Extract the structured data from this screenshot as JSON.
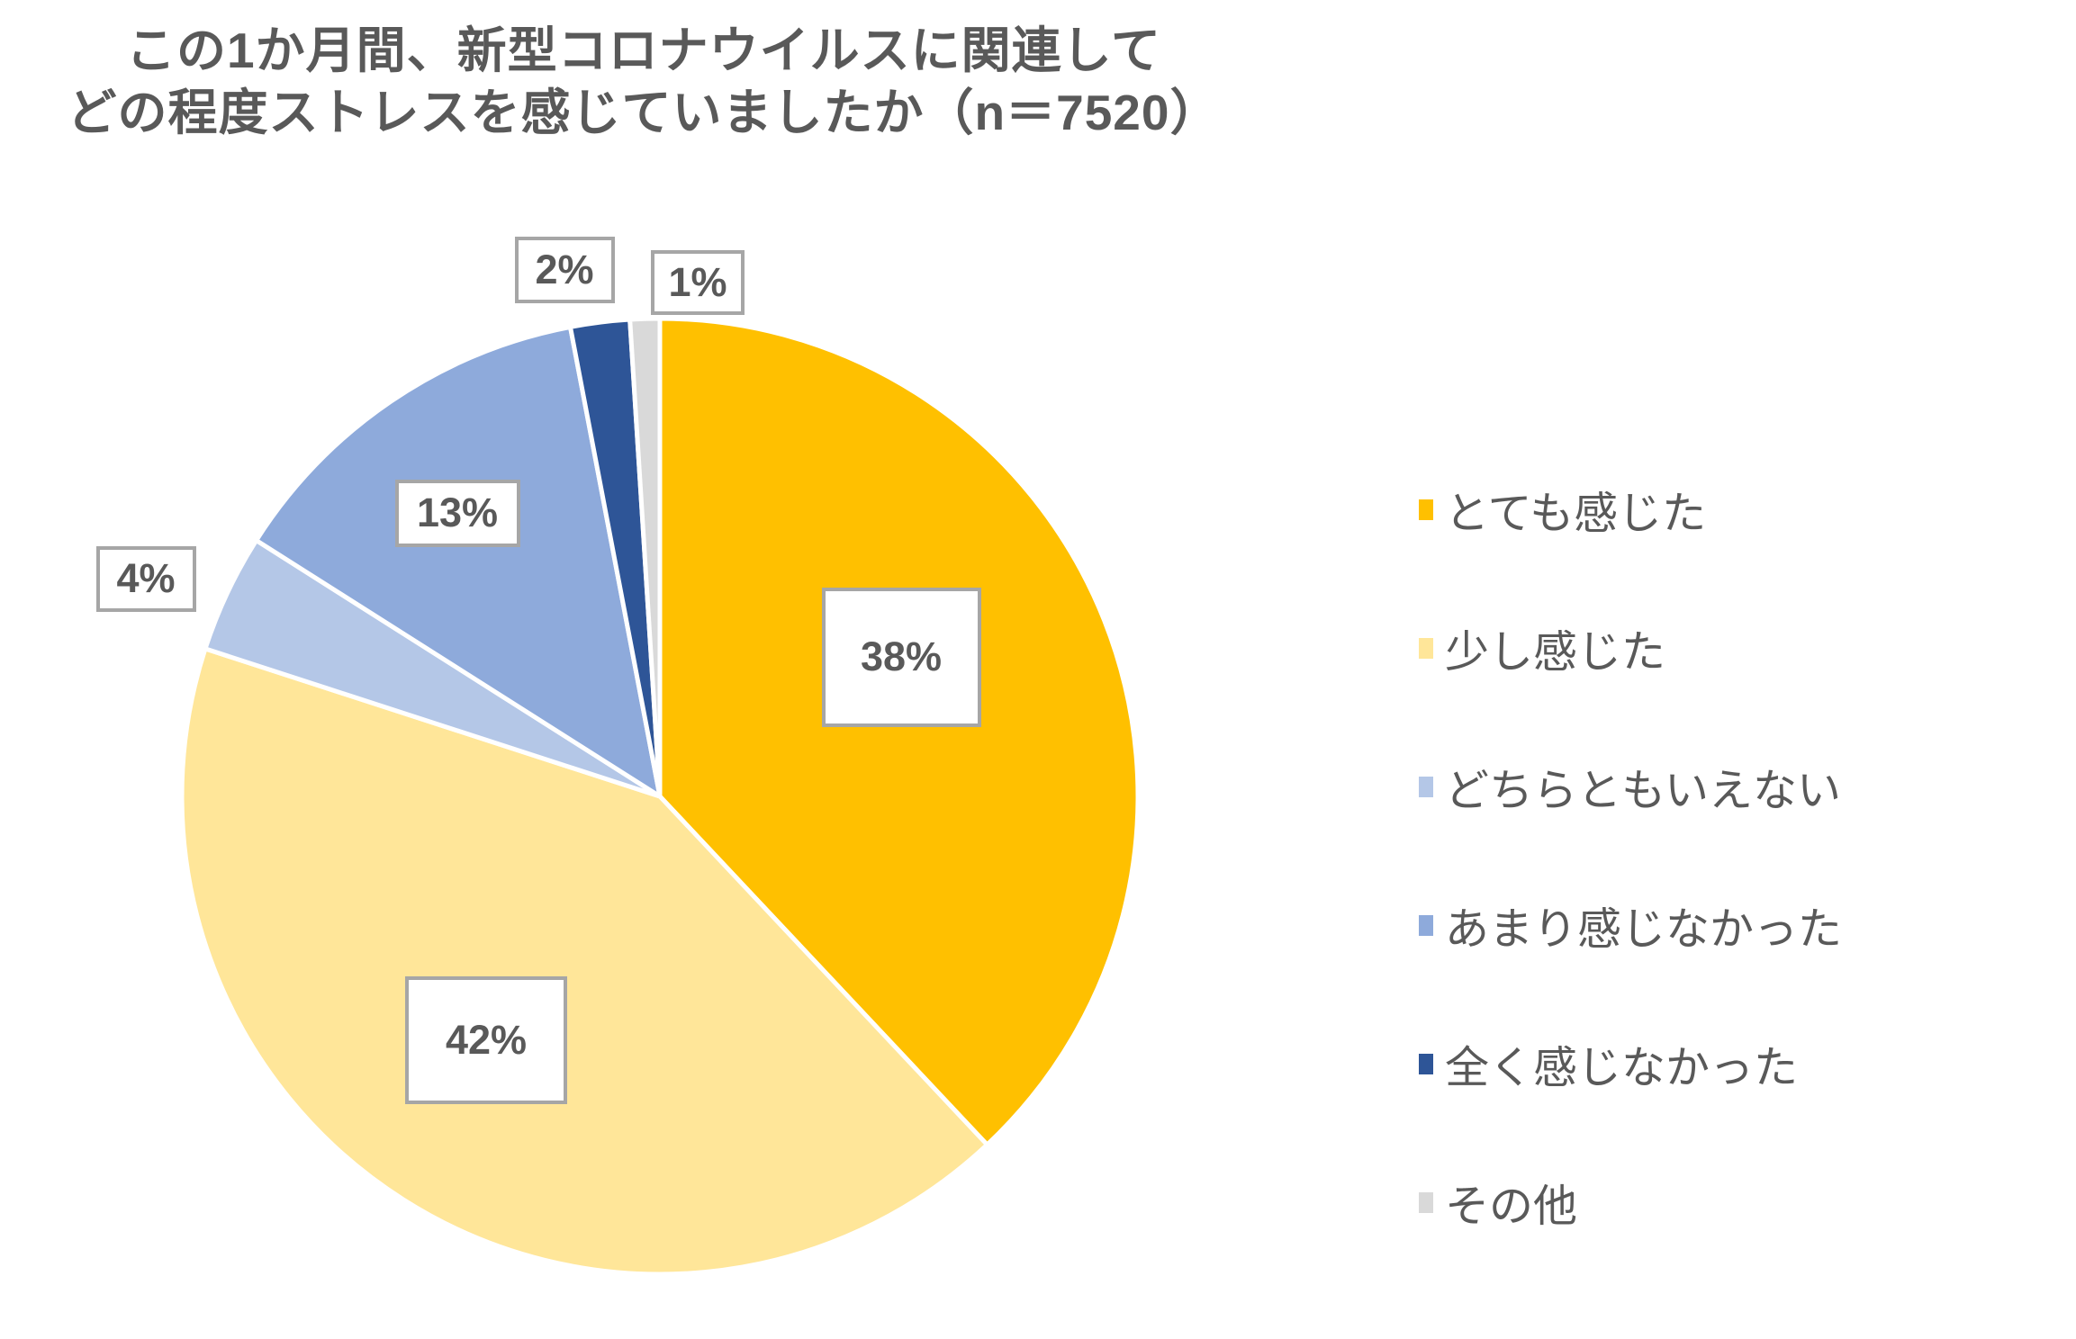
{
  "title": {
    "line1": "この1か月間、新型コロナウイルスに関連して",
    "line2": "どの程度ストレスを感じていましたか（n＝7520）"
  },
  "chart_data": {
    "type": "pie",
    "title": "この1か月間、新型コロナウイルスに関連してどの程度ストレスを感じていましたか",
    "sample_size_label": "n＝7520",
    "start_angle_deg": 0,
    "direction": "clockwise",
    "legend_position": "right",
    "background_color": "#FFFFFF",
    "slice_border_color": "#FFFFFF",
    "label_text_color": "#595959",
    "label_box_border_color": "#A6A6A6",
    "slices": [
      {
        "label": "とても感じた",
        "value_pct": 38,
        "data_label": "38%",
        "color": "#FFC000",
        "label_placement": "inside"
      },
      {
        "label": "少し感じた",
        "value_pct": 42,
        "data_label": "42%",
        "color": "#FFE699",
        "label_placement": "inside"
      },
      {
        "label": "どちらともいえない",
        "value_pct": 4,
        "data_label": "4%",
        "color": "#B4C7E7",
        "label_placement": "outside"
      },
      {
        "label": "あまり感じなかった",
        "value_pct": 13,
        "data_label": "13%",
        "color": "#8EAADB",
        "label_placement": "inside"
      },
      {
        "label": "全く感じなかった",
        "value_pct": 2,
        "data_label": "2%",
        "color": "#2E5597",
        "label_placement": "outside"
      },
      {
        "label": "その他",
        "value_pct": 1,
        "data_label": "1%",
        "color": "#D9D9D9",
        "label_placement": "outside"
      }
    ]
  },
  "legend": {
    "items": [
      {
        "label": "とても感じた",
        "color": "#FFC000"
      },
      {
        "label": "少し感じた",
        "color": "#FFE699"
      },
      {
        "label": "どちらともいえない",
        "color": "#B4C7E7"
      },
      {
        "label": "あまり感じなかった",
        "color": "#8EAADB"
      },
      {
        "label": "全く感じなかった",
        "color": "#2E5597"
      },
      {
        "label": "その他",
        "color": "#D9D9D9"
      }
    ]
  }
}
